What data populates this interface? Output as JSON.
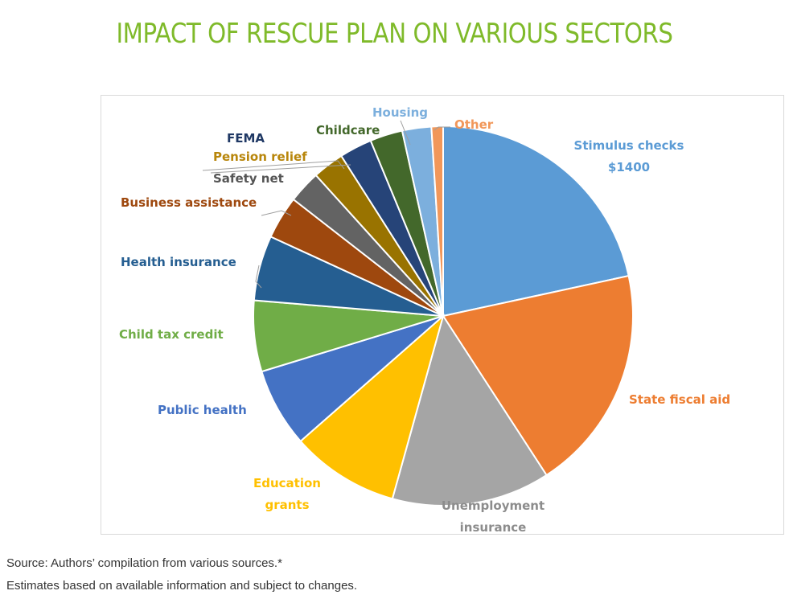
{
  "page_title": "IMPACT OF RESCUE PLAN ON VARIOUS SECTORS",
  "chart_data": {
    "type": "pie",
    "title": "IMPACT OF RESCUE PLAN ON VARIOUS SECTORS",
    "slices": [
      {
        "label": "Stimulus checks $1400",
        "value": 21.8,
        "color": "#5b9bd5"
      },
      {
        "label": "State fiscal aid",
        "value": 19.4,
        "color": "#ed7d31"
      },
      {
        "label": "Unemployment insurance",
        "value": 13.6,
        "color": "#a5a5a5"
      },
      {
        "label": "Education grants",
        "value": 9.3,
        "color": "#ffc000"
      },
      {
        "label": "Public health",
        "value": 6.8,
        "color": "#4472c4"
      },
      {
        "label": "Child tax credit",
        "value": 6.1,
        "color": "#70ad47"
      },
      {
        "label": "Health insurance",
        "value": 5.6,
        "color": "#255e91"
      },
      {
        "label": "Business assistance",
        "value": 3.7,
        "color": "#9e480e"
      },
      {
        "label": "Safety net",
        "value": 2.8,
        "color": "#636363"
      },
      {
        "label": "Pension relief",
        "value": 2.7,
        "color": "#997300"
      },
      {
        "label": "FEMA",
        "value": 2.8,
        "color": "#264478"
      },
      {
        "label": "Childcare",
        "value": 2.8,
        "color": "#43682b"
      },
      {
        "label": "Housing",
        "value": 2.5,
        "color": "#7cafdd"
      },
      {
        "label": "Other",
        "value": 1.0,
        "color": "#f1975a"
      }
    ],
    "display_labels": [
      {
        "lines": [
          "Stimulus checks",
          "$1400"
        ],
        "color": "#5b9bd5"
      },
      {
        "lines": [
          "State fiscal aid"
        ],
        "color": "#ed7d31"
      },
      {
        "lines": [
          "Unemployment",
          "insurance"
        ],
        "color": "#8c8c8c"
      },
      {
        "lines": [
          "Education",
          "grants"
        ],
        "color": "#ffc000"
      },
      {
        "lines": [
          "Public health"
        ],
        "color": "#4472c4"
      },
      {
        "lines": [
          "Child tax credit"
        ],
        "color": "#70ad47"
      },
      {
        "lines": [
          "Health insurance"
        ],
        "color": "#255e91"
      },
      {
        "lines": [
          "Business assistance"
        ],
        "color": "#9e480e"
      },
      {
        "lines": [
          "Safety net"
        ],
        "color": "#555555"
      },
      {
        "lines": [
          "Pension relief"
        ],
        "color": "#b8860b"
      },
      {
        "lines": [
          "FEMA"
        ],
        "color": "#1f3864"
      },
      {
        "lines": [
          "Childcare"
        ],
        "color": "#43682b"
      },
      {
        "lines": [
          "Housing"
        ],
        "color": "#7cafdd"
      },
      {
        "lines": [
          "Other"
        ],
        "color": "#f1975a"
      }
    ]
  },
  "footnotes": {
    "source": "Source: Authors’ compilation from various sources.*",
    "estimate": "Estimates based on available information and subject to changes."
  }
}
